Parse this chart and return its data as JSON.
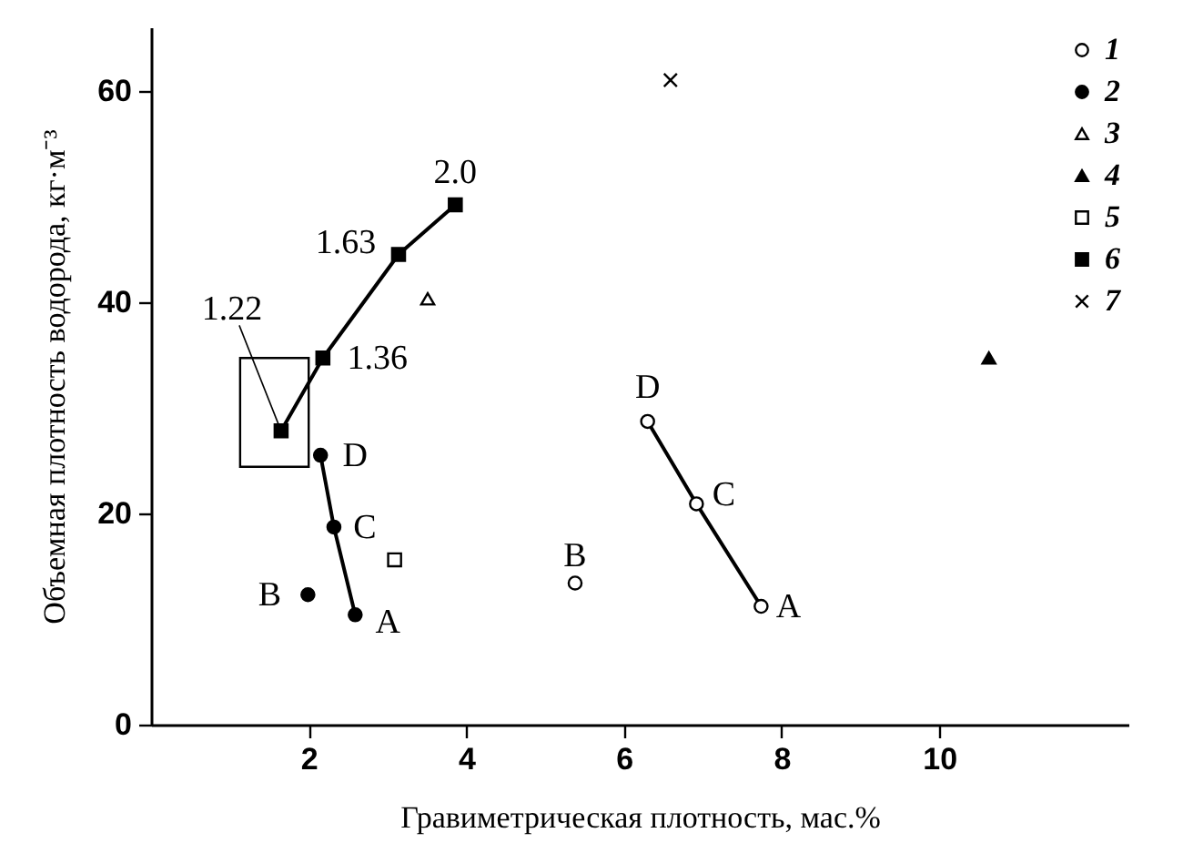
{
  "chart_data": {
    "type": "scatter",
    "xlabel": "Гравиметрическая плотность, мас.%",
    "ylabel": "Объемная плотность водорода, кг·м⁻³",
    "xlim": [
      0,
      12.4
    ],
    "ylim": [
      0,
      66
    ],
    "xticks": [
      2,
      4,
      6,
      8,
      10
    ],
    "yticks": [
      0,
      20,
      40,
      60
    ],
    "grid": false,
    "legend": "top right",
    "series": [
      {
        "name": "1",
        "type": "line",
        "color": "#000000",
        "marker": "circle",
        "colors": [
          "#ffffff",
          "#ffffff",
          "#ffffff"
        ],
        "x": [
          6.3,
          6.92,
          7.74
        ],
        "values": [
          28.7,
          20.9,
          11.2
        ]
      },
      {
        "name": "2",
        "type": "line",
        "color": "#000000",
        "marker": "circle",
        "x": [
          2.15,
          2.32,
          2.59
        ],
        "values": [
          25.5,
          18.7,
          10.4
        ]
      },
      {
        "name": "3",
        "color": "#000000",
        "marker": "triangle",
        "colors": [
          "#ffffff"
        ],
        "x": [
          3.51
        ],
        "values": [
          40.3
        ]
      },
      {
        "name": "4",
        "color": "#000000",
        "marker": "triangle",
        "x": [
          10.63
        ],
        "values": [
          34.7
        ]
      },
      {
        "name": "5",
        "color": "#000000",
        "marker": "square",
        "colors": [
          "#ffffff"
        ],
        "x": [
          3.09
        ],
        "values": [
          15.6
        ]
      },
      {
        "name": "6",
        "type": "line",
        "color": "#000000",
        "marker": "square",
        "x": [
          1.65,
          2.18,
          3.14,
          3.86
        ],
        "values": [
          27.8,
          34.7,
          44.5,
          49.2
        ]
      },
      {
        "name": "7",
        "color": "#000000",
        "marker": "cross",
        "x": [
          6.59
        ],
        "values": [
          61.0
        ]
      },
      {
        "color": "#000000",
        "marker": "circle",
        "colors": [
          "#ffffff"
        ],
        "x": [
          5.38
        ],
        "values": [
          13.4
        ]
      },
      {
        "color": "#000000",
        "marker": "circle",
        "x": [
          1.99
        ],
        "values": [
          12.3
        ]
      }
    ],
    "annotations": [
      {
        "text": "1.22",
        "x": 1.65,
        "y": 27.8
      },
      {
        "text": "1.36",
        "x": 2.18,
        "y": 34.7
      },
      {
        "text": "1.63",
        "x": 3.14,
        "y": 44.5
      },
      {
        "text": "2.0",
        "x": 3.86,
        "y": 49.2
      },
      {
        "text": "D",
        "x": 2.15,
        "y": 25.5
      },
      {
        "text": "C",
        "x": 2.32,
        "y": 18.7
      },
      {
        "text": "B",
        "x": 1.99,
        "y": 12.3
      },
      {
        "text": "A",
        "x": 2.59,
        "y": 10.4
      },
      {
        "text": "D",
        "x": 6.3,
        "y": 28.7
      },
      {
        "text": "C",
        "x": 6.92,
        "y": 20.9
      },
      {
        "text": "B",
        "x": 5.38,
        "y": 13.4
      },
      {
        "text": "A",
        "x": 7.74,
        "y": 11.2
      }
    ]
  }
}
